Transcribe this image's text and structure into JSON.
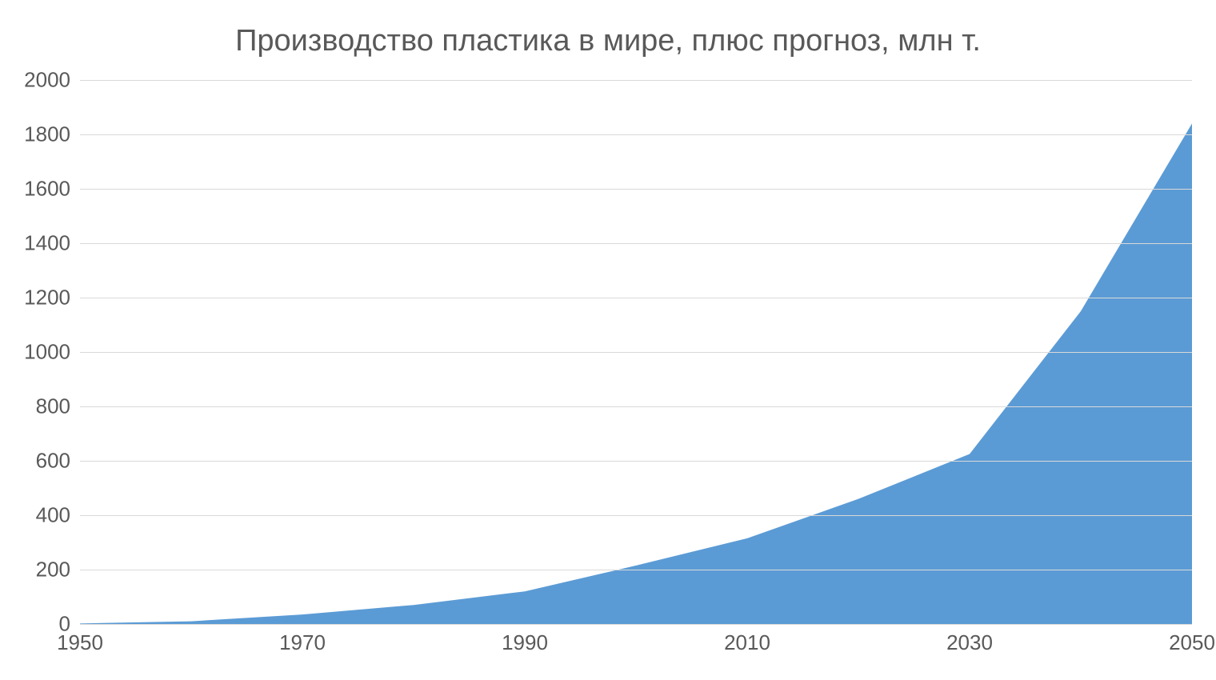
{
  "chart": {
    "type": "area",
    "title": "Производство пластика в мире, плюс прогноз, млн т.",
    "title_fontsize": 38,
    "title_color": "#595959",
    "x_values": [
      1950,
      1960,
      1970,
      1980,
      1990,
      2000,
      2010,
      2020,
      2030,
      2040,
      2050
    ],
    "y_values": [
      2,
      10,
      35,
      70,
      120,
      215,
      315,
      460,
      625,
      1150,
      1840
    ],
    "x_ticks": [
      1950,
      1970,
      1990,
      2010,
      2030,
      2050
    ],
    "y_ticks": [
      0,
      200,
      400,
      600,
      800,
      1000,
      1200,
      1400,
      1600,
      1800,
      2000
    ],
    "xlim": [
      1950,
      2050
    ],
    "ylim": [
      0,
      2000
    ],
    "fill_color": "#5b9bd5",
    "background_color": "#ffffff",
    "grid_color": "#d9d9d9",
    "axis_label_color": "#595959",
    "axis_label_fontsize": 26,
    "grid_horizontal": true,
    "grid_vertical": false
  }
}
